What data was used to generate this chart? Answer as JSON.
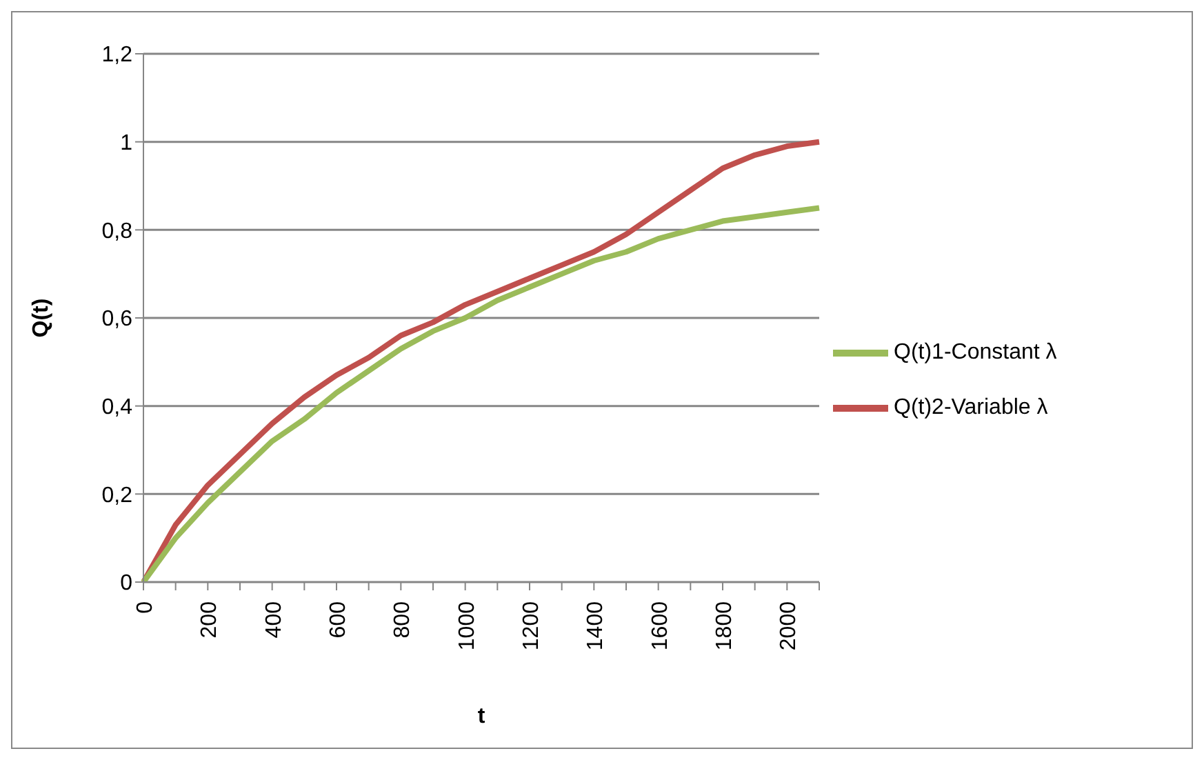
{
  "chart_data": {
    "type": "line",
    "xlabel": "t",
    "ylabel": "Q(t)",
    "categories": [
      "0",
      null,
      "200",
      null,
      "400",
      null,
      "600",
      null,
      "800",
      null,
      "1000",
      null,
      "1200",
      null,
      "1400",
      null,
      "1600",
      null,
      "1800",
      null,
      "2000",
      null
    ],
    "series": [
      {
        "name": "Q(t)2-Variable λ",
        "color": "#c0504d",
        "values": [
          0,
          0.13,
          0.22,
          0.29,
          0.36,
          0.42,
          0.47,
          0.51,
          0.56,
          0.59,
          0.63,
          0.66,
          0.69,
          0.72,
          0.75,
          0.79,
          0.84,
          0.89,
          0.94,
          0.97,
          0.99,
          1.0
        ]
      },
      {
        "name": "Q(t)1-Constant λ",
        "color": "#9bbb59",
        "values": [
          0,
          0.1,
          0.18,
          0.25,
          0.32,
          0.37,
          0.43,
          0.48,
          0.53,
          0.57,
          0.6,
          0.64,
          0.67,
          0.7,
          0.73,
          0.75,
          0.78,
          0.8,
          0.82,
          0.83,
          0.84,
          0.85
        ]
      }
    ],
    "ylim": [
      0,
      1.2
    ],
    "yticks": [
      0,
      {
        "value": 0.2,
        "label": "0,2"
      },
      {
        "value": 0.4,
        "label": "0,4"
      },
      {
        "value": 0.6,
        "label": "0,6"
      },
      {
        "value": 0.8,
        "label": "0,8"
      },
      1,
      {
        "value": 1.2,
        "label": "1,2"
      }
    ],
    "grid": "y",
    "legend": "right",
    "marker": "none",
    "line_style": "solid"
  }
}
